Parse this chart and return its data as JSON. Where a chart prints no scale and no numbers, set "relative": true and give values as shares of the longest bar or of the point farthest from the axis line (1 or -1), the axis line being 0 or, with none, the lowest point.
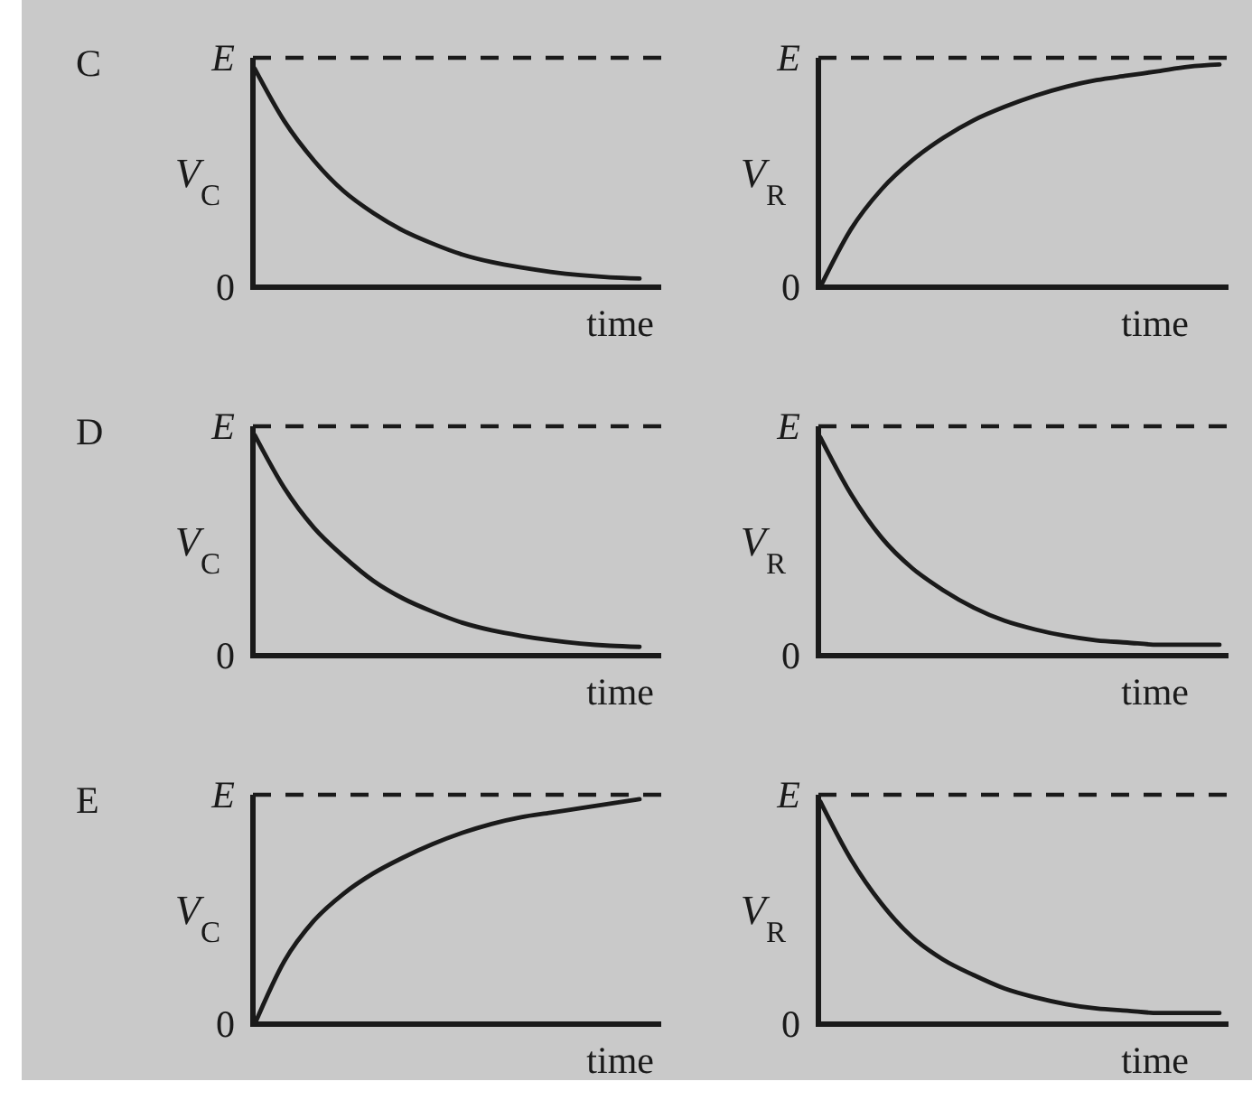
{
  "chart_data": [
    {
      "type": "line",
      "relative": true,
      "title": "C",
      "xlabel": "time",
      "ylabel": "V$_{C}$",
      "categories": [
        null,
        null,
        null,
        null,
        null,
        null,
        null,
        null,
        null,
        null,
        null,
        null,
        null,
        null
      ],
      "values": [
        1,
        0.76,
        0.58,
        0.44,
        0.34,
        0.26,
        0.2,
        0.15,
        0.115,
        0.09,
        0.07,
        0.055,
        0.045,
        0.04
      ],
      "color": "#1a1a1a",
      "ref_lines": [
        {
          "axis": "y",
          "value": 1.05,
          "label": "E",
          "line_style": "dashed"
        }
      ],
      "annotations": [
        "0"
      ]
    },
    {
      "type": "line",
      "relative": true,
      "xlabel": "time",
      "ylabel": "V$_{R}$",
      "categories": [
        null,
        null,
        null,
        null,
        null,
        null,
        null,
        null,
        null,
        null,
        null,
        null,
        null,
        null
      ],
      "values": [
        0,
        0.26,
        0.44,
        0.57,
        0.67,
        0.75,
        0.81,
        0.86,
        0.9,
        0.93,
        0.95,
        0.97,
        0.99,
        1
      ],
      "color": "#1a1a1a",
      "ref_lines": [
        {
          "axis": "y",
          "value": 1.03,
          "label": "E",
          "line_style": "dashed"
        }
      ],
      "annotations": [
        "0"
      ]
    },
    {
      "type": "line",
      "relative": true,
      "title": "D",
      "xlabel": "time",
      "ylabel": "V$_{C}$",
      "categories": [
        null,
        null,
        null,
        null,
        null,
        null,
        null,
        null,
        null,
        null,
        null,
        null,
        null,
        null
      ],
      "values": [
        1,
        0.76,
        0.58,
        0.45,
        0.34,
        0.26,
        0.2,
        0.15,
        0.115,
        0.09,
        0.07,
        0.055,
        0.045,
        0.04
      ],
      "color": "#1a1a1a",
      "ref_lines": [
        {
          "axis": "y",
          "value": 1.04,
          "label": "E",
          "line_style": "dashed"
        }
      ],
      "annotations": [
        "0"
      ]
    },
    {
      "type": "line",
      "relative": true,
      "xlabel": "time",
      "ylabel": "V$_{R}$",
      "categories": [
        null,
        null,
        null,
        null,
        null,
        null,
        null,
        null,
        null,
        null,
        null,
        null,
        null,
        null
      ],
      "values": [
        1,
        0.74,
        0.54,
        0.4,
        0.3,
        0.22,
        0.16,
        0.12,
        0.09,
        0.07,
        0.06,
        0.05,
        0.05,
        0.05
      ],
      "color": "#1a1a1a",
      "ref_lines": [
        {
          "axis": "y",
          "value": 1.05,
          "label": "E",
          "line_style": "dashed"
        }
      ],
      "annotations": [
        "0"
      ]
    },
    {
      "type": "line",
      "relative": true,
      "title": "E",
      "xlabel": "time",
      "ylabel": "V$_{C}$",
      "categories": [
        null,
        null,
        null,
        null,
        null,
        null,
        null,
        null,
        null,
        null,
        null,
        null,
        null,
        null
      ],
      "values": [
        0,
        0.28,
        0.46,
        0.58,
        0.67,
        0.74,
        0.8,
        0.85,
        0.89,
        0.92,
        0.94,
        0.96,
        0.98,
        1
      ],
      "color": "#1a1a1a",
      "ref_lines": [
        {
          "axis": "y",
          "value": 1.02,
          "label": "E",
          "line_style": "dashed"
        }
      ],
      "annotations": [
        "0"
      ]
    },
    {
      "type": "line",
      "relative": true,
      "xlabel": "time",
      "ylabel": "V$_{R}$",
      "categories": [
        null,
        null,
        null,
        null,
        null,
        null,
        null,
        null,
        null,
        null,
        null,
        null,
        null,
        null
      ],
      "values": [
        1,
        0.74,
        0.54,
        0.39,
        0.29,
        0.22,
        0.16,
        0.12,
        0.09,
        0.07,
        0.06,
        0.05,
        0.05,
        0.05
      ],
      "color": "#1a1a1a",
      "ref_lines": [
        {
          "axis": "y",
          "value": 1.03,
          "label": "E",
          "line_style": "dashed"
        }
      ],
      "annotations": [
        "0"
      ]
    }
  ]
}
